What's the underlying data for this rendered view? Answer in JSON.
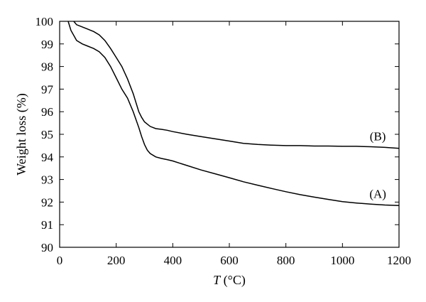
{
  "chart_data": {
    "type": "line",
    "xlabel": {
      "var": "T",
      "unit": " (°C)"
    },
    "ylabel": "Weight loss (%)",
    "xlim": [
      0,
      1200
    ],
    "ylim": [
      90,
      100
    ],
    "xticks": [
      0,
      200,
      400,
      600,
      800,
      1000,
      1200
    ],
    "yticks": [
      90,
      91,
      92,
      93,
      94,
      95,
      96,
      97,
      98,
      99,
      100
    ],
    "grid": false,
    "series": [
      {
        "name": "(A)",
        "x": [
          30,
          40,
          60,
          80,
          100,
          120,
          140,
          160,
          180,
          200,
          220,
          240,
          260,
          280,
          290,
          300,
          310,
          320,
          340,
          360,
          380,
          400,
          450,
          500,
          550,
          600,
          650,
          700,
          750,
          800,
          850,
          900,
          950,
          1000,
          1050,
          1100,
          1150,
          1200
        ],
        "y": [
          100,
          99.6,
          99.15,
          99.0,
          98.9,
          98.8,
          98.65,
          98.4,
          98.0,
          97.5,
          97.0,
          96.6,
          96.0,
          95.3,
          94.9,
          94.55,
          94.3,
          94.15,
          94.0,
          93.93,
          93.88,
          93.82,
          93.62,
          93.42,
          93.25,
          93.08,
          92.9,
          92.75,
          92.6,
          92.46,
          92.33,
          92.22,
          92.12,
          92.02,
          91.96,
          91.91,
          91.87,
          91.85
        ]
      },
      {
        "name": "(B)",
        "x": [
          50,
          60,
          80,
          100,
          120,
          140,
          160,
          180,
          200,
          220,
          240,
          260,
          280,
          290,
          300,
          320,
          340,
          360,
          380,
          400,
          450,
          500,
          550,
          600,
          650,
          700,
          750,
          800,
          850,
          900,
          950,
          1000,
          1050,
          1100,
          1150,
          1200
        ],
        "y": [
          100,
          99.85,
          99.75,
          99.65,
          99.55,
          99.4,
          99.15,
          98.8,
          98.4,
          98.0,
          97.45,
          96.8,
          96.0,
          95.75,
          95.55,
          95.35,
          95.25,
          95.22,
          95.18,
          95.12,
          95.0,
          94.9,
          94.8,
          94.7,
          94.6,
          94.55,
          94.52,
          94.5,
          94.5,
          94.48,
          94.48,
          94.47,
          94.47,
          94.45,
          94.42,
          94.38
        ]
      }
    ]
  }
}
